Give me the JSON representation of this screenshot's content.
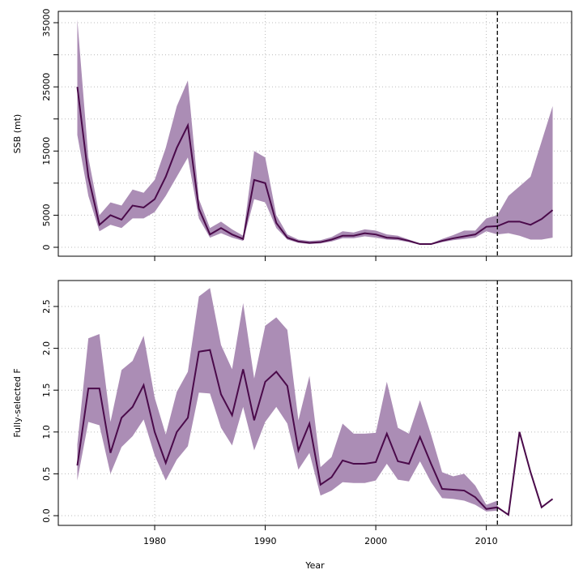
{
  "chart_data": [
    {
      "type": "line",
      "ylabel": "SSB (mt)",
      "x": [
        1973,
        1974,
        1975,
        1976,
        1977,
        1978,
        1979,
        1980,
        1981,
        1982,
        1983,
        1984,
        1985,
        1986,
        1987,
        1988,
        1989,
        1990,
        1991,
        1992,
        1993,
        1994,
        1995,
        1996,
        1997,
        1998,
        1999,
        2000,
        2001,
        2002,
        2003,
        2004,
        2005,
        2006,
        2007,
        2008,
        2009,
        2010,
        2011,
        2012,
        2013,
        2014,
        2015,
        2016
      ],
      "values": [
        25000,
        11000,
        3500,
        5000,
        4300,
        6500,
        6200,
        7500,
        11000,
        15500,
        19000,
        6000,
        2000,
        3000,
        2000,
        1300,
        10500,
        10000,
        3800,
        1500,
        900,
        700,
        800,
        1200,
        1800,
        1800,
        2200,
        2000,
        1500,
        1400,
        1000,
        500,
        500,
        1000,
        1400,
        1700,
        2000,
        3200,
        3300,
        4000,
        4000,
        3500,
        4400,
        5800
      ],
      "lower": [
        17500,
        8000,
        2500,
        3500,
        3000,
        4500,
        4500,
        5500,
        8000,
        11000,
        14000,
        4500,
        1500,
        2200,
        1500,
        1000,
        7500,
        7000,
        3000,
        1200,
        700,
        500,
        600,
        900,
        1400,
        1400,
        1700,
        1500,
        1200,
        1100,
        800,
        400,
        400,
        800,
        1100,
        1300,
        1500,
        2500,
        2000,
        2200,
        1800,
        1200,
        1200,
        1500
      ],
      "upper": [
        35500,
        14000,
        5000,
        7000,
        6500,
        9000,
        8500,
        10500,
        15500,
        22000,
        26000,
        7500,
        3000,
        4000,
        2800,
        1800,
        15000,
        14000,
        5000,
        2000,
        1200,
        1000,
        1100,
        1600,
        2500,
        2300,
        2800,
        2600,
        2000,
        1800,
        1200,
        600,
        600,
        1300,
        1900,
        2600,
        2600,
        4500,
        5000,
        8000,
        9500,
        11000,
        16500,
        22000
      ],
      "color": "#4a0a4a",
      "band_color": "#ab8db5",
      "xlim": [
        1971.28,
        2017.72
      ],
      "minor_xticks": [
        1980,
        1990,
        2000,
        2010
      ],
      "ylim": [
        -1390,
        36770
      ],
      "yticks": [
        0,
        5000,
        15000,
        25000,
        35000
      ],
      "minor_yticks": [
        10000,
        20000,
        30000
      ],
      "grid": true,
      "vline": 2011
    },
    {
      "type": "line",
      "ylabel": "Fully-selected F",
      "xlabel": "Year",
      "x": [
        1973,
        1974,
        1975,
        1976,
        1977,
        1978,
        1979,
        1980,
        1981,
        1982,
        1983,
        1984,
        1985,
        1986,
        1987,
        1988,
        1989,
        1990,
        1991,
        1992,
        1993,
        1994,
        1995,
        1996,
        1997,
        1998,
        1999,
        2000,
        2001,
        2002,
        2003,
        2004,
        2005,
        2006,
        2007,
        2008,
        2009,
        2010,
        2011,
        2012,
        2013,
        2014,
        2015,
        2016
      ],
      "values": [
        0.6,
        1.52,
        1.52,
        0.75,
        1.17,
        1.3,
        1.56,
        1.0,
        0.63,
        1.0,
        1.17,
        1.96,
        1.98,
        1.45,
        1.2,
        1.75,
        1.14,
        1.6,
        1.72,
        1.55,
        0.78,
        1.1,
        0.37,
        0.46,
        0.66,
        0.62,
        0.62,
        0.64,
        0.98,
        0.65,
        0.62,
        0.94,
        0.62,
        0.32,
        0.31,
        0.3,
        0.22,
        0.08,
        0.1,
        0.01,
        1.0,
        0.52,
        0.1,
        0.2
      ],
      "lower": [
        0.42,
        1.12,
        1.08,
        0.5,
        0.82,
        0.95,
        1.15,
        0.72,
        0.42,
        0.67,
        0.83,
        1.47,
        1.46,
        1.05,
        0.84,
        1.3,
        0.78,
        1.12,
        1.3,
        1.1,
        0.55,
        0.75,
        0.24,
        0.3,
        0.4,
        0.39,
        0.39,
        0.42,
        0.62,
        0.43,
        0.41,
        0.65,
        0.4,
        0.21,
        0.2,
        0.18,
        0.13,
        0.05,
        0.06,
        null,
        null,
        null,
        null,
        null
      ],
      "upper": [
        0.85,
        2.12,
        2.17,
        1.12,
        1.74,
        1.85,
        2.15,
        1.41,
        0.97,
        1.48,
        1.72,
        2.62,
        2.72,
        2.04,
        1.75,
        2.54,
        1.64,
        2.27,
        2.37,
        2.22,
        1.14,
        1.67,
        0.58,
        0.7,
        1.1,
        0.98,
        0.98,
        0.99,
        1.6,
        1.05,
        0.98,
        1.38,
        0.97,
        0.52,
        0.47,
        0.5,
        0.36,
        0.13,
        0.18,
        null,
        null,
        null,
        null,
        null
      ],
      "color": "#4a0a4a",
      "band_color": "#ab8db5",
      "xlim": [
        1971.28,
        2017.72
      ],
      "xticks": [
        1980,
        1990,
        2000,
        2010
      ],
      "ylim": [
        -0.116,
        2.81
      ],
      "yticks": [
        {
          "value": 0,
          "label": "0.0"
        },
        0.5,
        {
          "value": 1,
          "label": "1.0"
        },
        1.5,
        {
          "value": 2,
          "label": "2.0"
        },
        2.5
      ],
      "grid": true,
      "vline": 2011
    }
  ]
}
